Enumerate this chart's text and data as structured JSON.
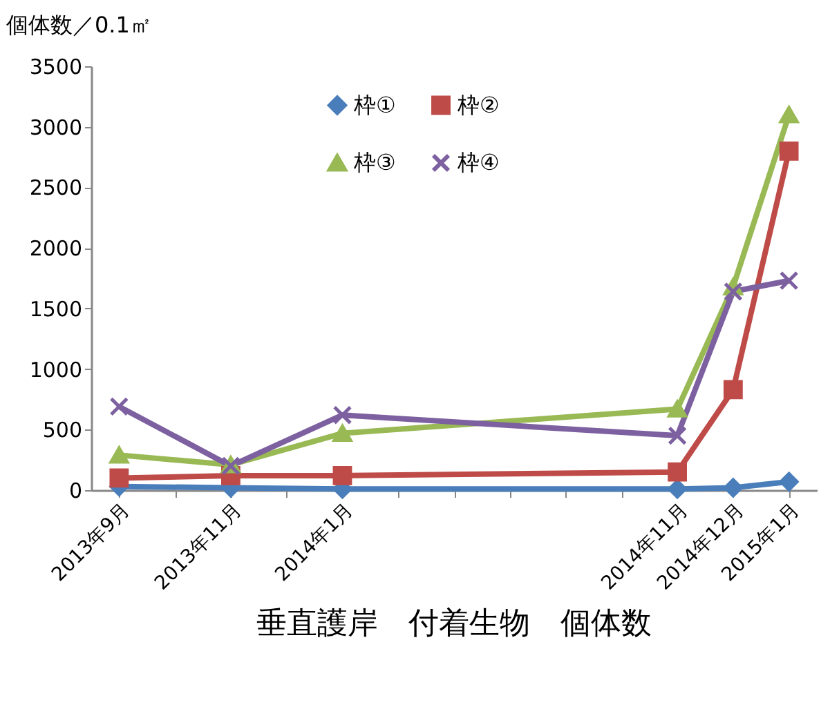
{
  "chart_data": {
    "type": "line",
    "title": "垂直護岸　付着生物　個体数",
    "ylabel": "個体数／0.1㎡",
    "categories": [
      "2013年9月",
      null,
      "2013年11月",
      null,
      "2014年1月",
      null,
      null,
      null,
      null,
      null,
      "2014年11月",
      "2014年12月",
      "2015年1月"
    ],
    "series": [
      {
        "name": "枠①",
        "color": "#4a7ebb",
        "marker": "diamond",
        "values": [
          30,
          null,
          20,
          null,
          10,
          null,
          null,
          null,
          null,
          null,
          10,
          20,
          70
        ]
      },
      {
        "name": "枠②",
        "color": "#be4b48",
        "marker": "square",
        "values": [
          100,
          null,
          120,
          null,
          120,
          null,
          null,
          null,
          null,
          null,
          150,
          830,
          2800
        ]
      },
      {
        "name": "枠③",
        "color": "#98b954",
        "marker": "triangle",
        "values": [
          290,
          null,
          210,
          null,
          470,
          null,
          null,
          null,
          null,
          null,
          670,
          1680,
          3100
        ]
      },
      {
        "name": "枠④",
        "color": "#7d60a0",
        "marker": "cross",
        "values": [
          690,
          null,
          200,
          null,
          620,
          null,
          null,
          null,
          null,
          null,
          450,
          1640,
          1730
        ]
      }
    ],
    "ylim": [
      0,
      3500
    ],
    "yticks": [
      0,
      500,
      1000,
      1500,
      2000,
      2500,
      3000,
      3500
    ],
    "grid": false,
    "legend": "top",
    "line_style": "solid"
  }
}
